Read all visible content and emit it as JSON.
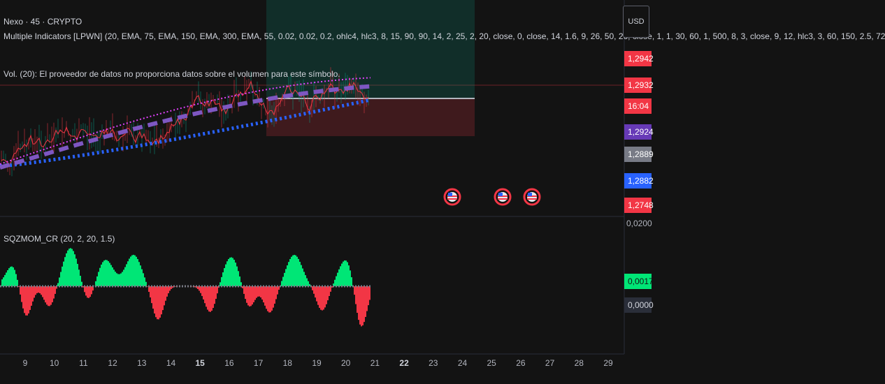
{
  "header": {
    "symbol_line": "Nexo · 45 · CRYPTO",
    "indicator_line": "Multiple Indicators [LPWN] (20, EMA, 75, EMA, 150, EMA, 300, EMA, 55, 0.02, 0.02, 0.2, ohlc4, hlc3, 8, 15, 90, 90, 14, 2, 25, 2, 20, close, 0, close, 14, 1.6, 9, 26, 50, 26, close, 1, 1, 30, 60, 1, 500, 8, 3, close, 9, 12, hlc3, 3, 60, 150, 2.5, 72",
    "volume_line": "Vol. (20): El proveedor de datos no proporciona datos sobre el volumen para este símbolo."
  },
  "currency_button": "USD",
  "price_tags": [
    {
      "label": "1,2942",
      "color": "#f23645"
    },
    {
      "label": "1,2932",
      "color": "#f23645"
    },
    {
      "label": "16:04",
      "color": "#f23645"
    },
    {
      "label": "1,2924",
      "color": "#673ab7"
    },
    {
      "label": "1,2889",
      "color": "#787b86"
    },
    {
      "label": "1,2882",
      "color": "#2962ff"
    },
    {
      "label": "1,2748",
      "color": "#f23645"
    }
  ],
  "pane_divider_label": "0,0200",
  "oscillator": {
    "title": "SQZMOM_CR (20, 2, 20, 1.5)",
    "tags": [
      {
        "label": "0,0017",
        "color": "#00e676",
        "text_color": "#131313"
      },
      {
        "label": "0,0000",
        "color": "#2a2e39",
        "text_color": "#d1d4dc"
      }
    ]
  },
  "x_axis": {
    "dates": [
      "9",
      "10",
      "11",
      "12",
      "13",
      "14",
      "15",
      "16",
      "17",
      "18",
      "19",
      "20",
      "21",
      "22",
      "23",
      "24",
      "25",
      "26",
      "27",
      "28",
      "29"
    ],
    "bold": [
      "15",
      "22"
    ]
  },
  "events": [
    "us-flag-icon",
    "us-flag-icon",
    "us-flag-icon"
  ],
  "colors": {
    "background": "#131313",
    "ema_blue": "#2962ff",
    "ema_purple": "#7e57c2",
    "ema_pink": "#e040fb",
    "price_red": "#f23645",
    "price_green": "#089981",
    "hist_green": "#00e676",
    "hist_red": "#f23645"
  }
}
